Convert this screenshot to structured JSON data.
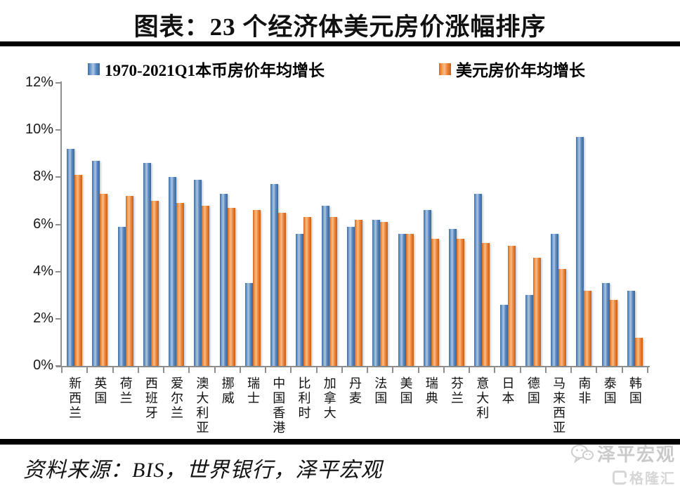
{
  "title": "图表：23 个经济体美元房价涨幅排序",
  "legend": {
    "items": [
      {
        "label": "1970-2021Q1本币房价年均增长",
        "color": "#4e81bd"
      },
      {
        "label": "美元房价年均增长",
        "color": "#ed7d31"
      }
    ]
  },
  "chart_data": {
    "type": "bar",
    "title": "图表：23 个经济体美元房价涨幅排序",
    "categories": [
      "新西兰",
      "英国",
      "荷兰",
      "西班牙",
      "爱尔兰",
      "澳大利亚",
      "挪威",
      "瑞士",
      "中国香港",
      "比利时",
      "加拿大",
      "丹麦",
      "法国",
      "美国",
      "瑞典",
      "芬兰",
      "意大利",
      "日本",
      "德国",
      "马来西亚",
      "南非",
      "泰国",
      "韩国"
    ],
    "series": [
      {
        "name": "1970-2021Q1本币房价年均增长",
        "color": "#4e81bd",
        "values": [
          9.2,
          8.7,
          5.9,
          8.6,
          8.0,
          7.9,
          7.3,
          3.5,
          7.7,
          5.6,
          6.8,
          5.9,
          6.2,
          5.6,
          6.6,
          5.8,
          7.3,
          2.6,
          3.0,
          5.6,
          9.7,
          3.5,
          3.2
        ]
      },
      {
        "name": "美元房价年均增长",
        "color": "#ed7d31",
        "values": [
          8.1,
          7.3,
          7.2,
          7.0,
          6.9,
          6.8,
          6.7,
          6.6,
          6.5,
          6.3,
          6.3,
          6.2,
          6.1,
          5.6,
          5.4,
          5.4,
          5.2,
          5.1,
          4.6,
          4.1,
          3.2,
          2.8,
          1.2
        ]
      }
    ],
    "xlabel": "",
    "ylabel": "",
    "ylim": [
      0,
      12
    ],
    "ytick_labels": [
      "0%",
      "2%",
      "4%",
      "6%",
      "8%",
      "10%",
      "12%"
    ],
    "grid": false,
    "legend_position": "top"
  },
  "footer": {
    "source_text": "资料来源：BIS，世界银行，泽平宏观"
  },
  "watermark": {
    "brand": "泽平宏观",
    "platform": "格隆汇"
  }
}
